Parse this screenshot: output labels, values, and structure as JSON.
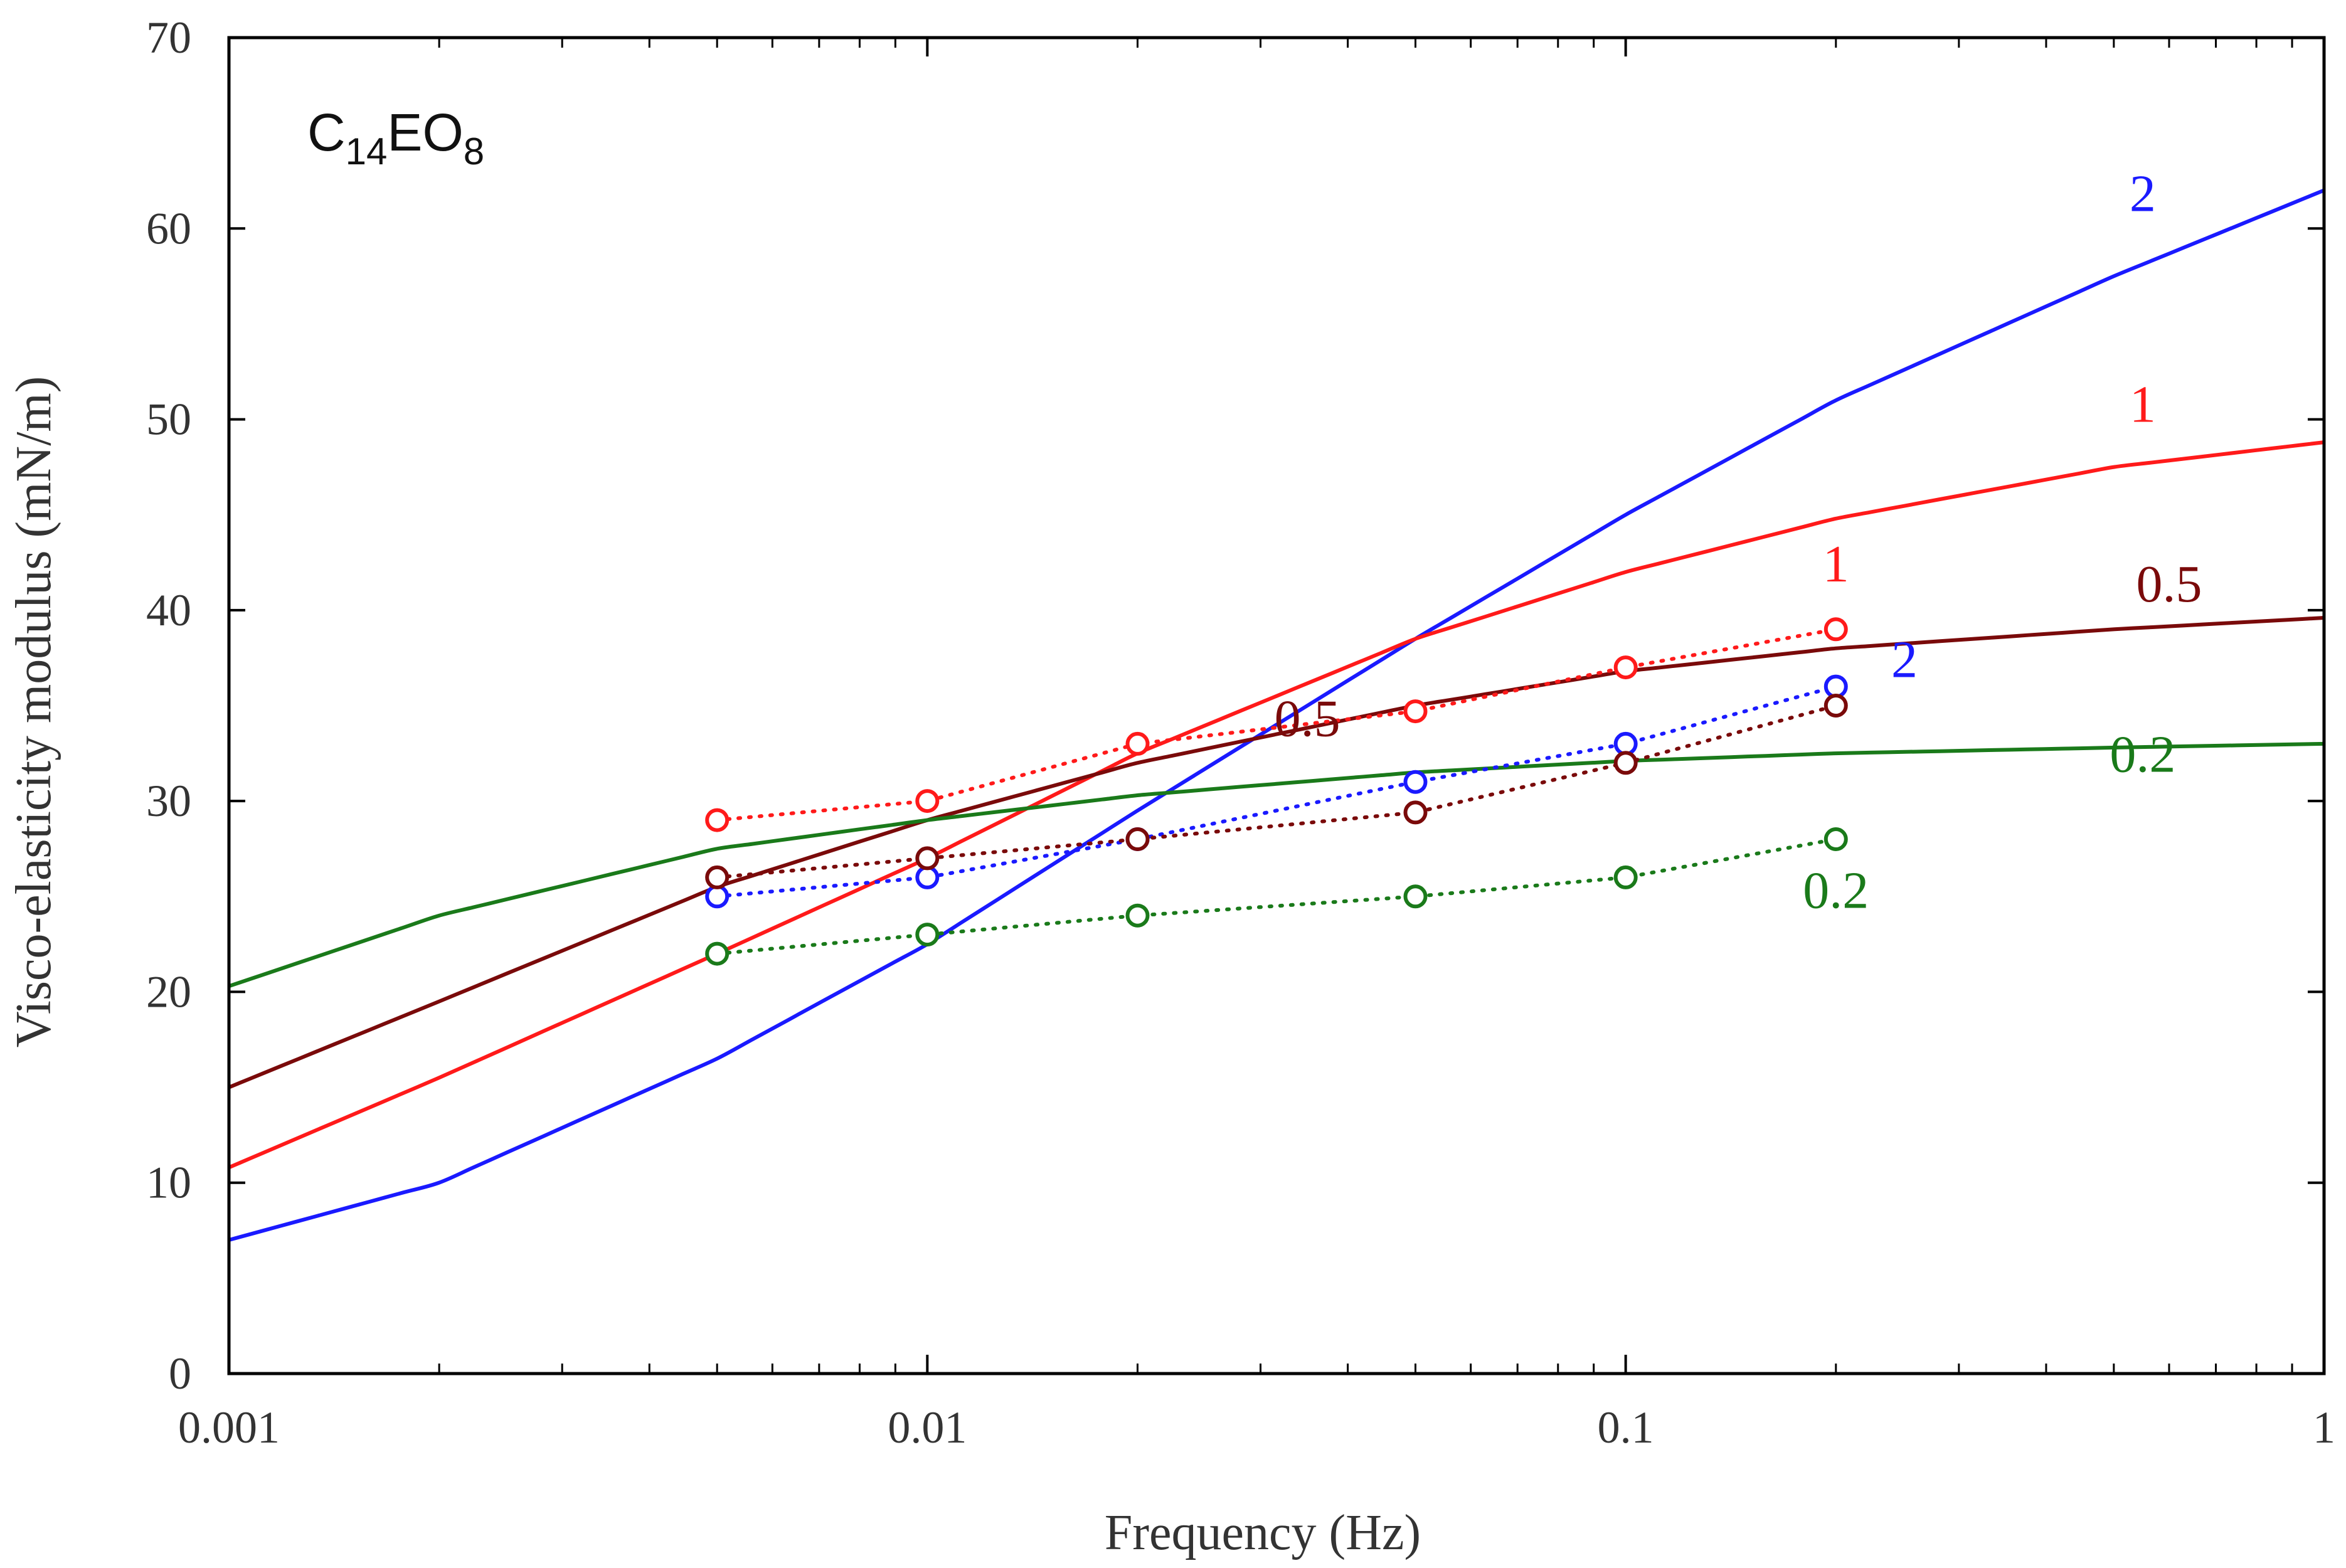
{
  "chart_data": {
    "type": "line",
    "title": {
      "base1": "C",
      "sub1": "14",
      "base2": "EO",
      "sub2": "8"
    },
    "xlabel": "Frequency (Hz)",
    "ylabel": "Visco-elasticity modulus (mN/m)",
    "xscale": "log",
    "xlim": [
      0.001,
      1
    ],
    "ylim": [
      0,
      70
    ],
    "xticks": [
      0.001,
      0.01,
      0.1,
      1
    ],
    "xtick_labels": [
      "0.001",
      "0.01",
      "0.1",
      "1"
    ],
    "yticks": [
      0,
      10,
      20,
      30,
      40,
      50,
      60,
      70
    ],
    "ytick_labels": [
      "0",
      "10",
      "20",
      "30",
      "40",
      "50",
      "60",
      "70"
    ],
    "grid": false,
    "legend": "none (series labelled inline)",
    "series": [
      {
        "name": "2",
        "label": "2",
        "kind": "model-curve",
        "color": "#1a1aff",
        "x": [
          0.001,
          0.002,
          0.005,
          0.01,
          0.02,
          0.05,
          0.1,
          0.2,
          0.5,
          1
        ],
        "y": [
          7,
          10,
          16.5,
          22.5,
          29.5,
          38.5,
          45,
          51,
          57.5,
          62
        ]
      },
      {
        "name": "1",
        "label": "1",
        "kind": "model-curve",
        "color": "#ff1a1a",
        "x": [
          0.001,
          0.002,
          0.005,
          0.01,
          0.02,
          0.05,
          0.1,
          0.2,
          0.5,
          1
        ],
        "y": [
          10.8,
          15.5,
          22,
          27,
          32.5,
          38.5,
          42,
          44.8,
          47.5,
          48.8
        ]
      },
      {
        "name": "0.5",
        "label": "0.5",
        "kind": "model-curve",
        "color": "#7a0a0a",
        "x": [
          0.001,
          0.002,
          0.005,
          0.01,
          0.02,
          0.05,
          0.1,
          0.2,
          0.5,
          1
        ],
        "y": [
          15,
          19.5,
          25.5,
          29,
          32,
          35,
          36.8,
          38,
          39,
          39.6
        ]
      },
      {
        "name": "0.2",
        "label": "0.2",
        "kind": "model-curve",
        "color": "#1a7a1a",
        "x": [
          0.001,
          0.002,
          0.005,
          0.01,
          0.02,
          0.05,
          0.1,
          0.2,
          0.5,
          1
        ],
        "y": [
          20.3,
          24,
          27.5,
          29,
          30.3,
          31.5,
          32.1,
          32.5,
          32.8,
          33
        ]
      },
      {
        "name": "1",
        "label": "1",
        "kind": "measured",
        "color": "#ff1a1a",
        "x": [
          0.005,
          0.01,
          0.02,
          0.05,
          0.1,
          0.2
        ],
        "y": [
          29,
          30,
          33,
          34.7,
          37,
          39
        ]
      },
      {
        "name": "2",
        "label": "2",
        "kind": "measured",
        "color": "#1a1aff",
        "x": [
          0.005,
          0.01,
          0.02,
          0.05,
          0.1,
          0.2
        ],
        "y": [
          25,
          26,
          28,
          31,
          33,
          36
        ]
      },
      {
        "name": "0.5",
        "label": "0.5",
        "kind": "measured",
        "color": "#7a0a0a",
        "x": [
          0.005,
          0.01,
          0.02,
          0.05,
          0.1,
          0.2
        ],
        "y": [
          26,
          27,
          28,
          29.4,
          32,
          35
        ]
      },
      {
        "name": "0.2",
        "label": "0.2",
        "kind": "measured",
        "color": "#1a7a1a",
        "x": [
          0.005,
          0.01,
          0.02,
          0.05,
          0.1,
          0.2
        ],
        "y": [
          22,
          23,
          24,
          25,
          26,
          28
        ]
      }
    ]
  }
}
